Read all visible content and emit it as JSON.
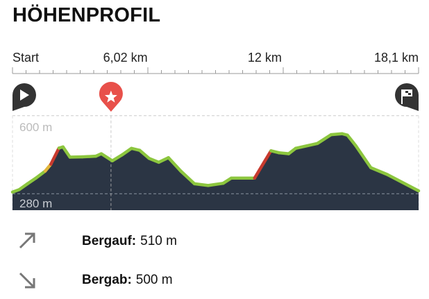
{
  "header": {
    "title": "HÖHENPROFIL"
  },
  "chart_data": {
    "type": "area",
    "title": "",
    "xlabel": "",
    "ylabel": "",
    "x_unit": "km",
    "y_unit": "m",
    "xlim": [
      0,
      18.1
    ],
    "ylim": [
      207,
      600
    ],
    "x_tick_labels": [
      {
        "value": 0,
        "label": "Start"
      },
      {
        "value": 6.02,
        "label": "6,02 km"
      },
      {
        "value": 12,
        "label": "12 km"
      },
      {
        "value": 18.1,
        "label": "18,1 km"
      }
    ],
    "y_tick_labels": [
      {
        "value": 600,
        "label": "600 m"
      },
      {
        "value": 280,
        "label": "280 m"
      }
    ],
    "grid": true,
    "x": [
      0,
      0.3,
      0.67,
      1.04,
      1.46,
      1.71,
      2.07,
      2.25,
      2.56,
      3.11,
      3.72,
      3.96,
      4.45,
      4.88,
      5.3,
      5.67,
      6.09,
      6.52,
      6.95,
      7.5,
      8.11,
      8.72,
      9.39,
      9.75,
      10.79,
      11.52,
      11.88,
      12.31,
      12.62,
      13.59,
      14.2,
      14.69,
      14.93,
      15.3,
      15.97,
      16.7,
      18.1
    ],
    "y": [
      287,
      297,
      321,
      344,
      373,
      401,
      467,
      472,
      430,
      431,
      434,
      444,
      415,
      439,
      466,
      458,
      425,
      409,
      428,
      373,
      321,
      314,
      323,
      344,
      344,
      456,
      448,
      444,
      466,
      486,
      522,
      526,
      520,
      477,
      387,
      359,
      292
    ],
    "markers": [
      {
        "type": "start",
        "icon": "play-icon",
        "km": 0
      },
      {
        "type": "highlight",
        "icon": "star-icon",
        "km": 4.39
      },
      {
        "type": "finish",
        "icon": "checkered-flag-icon",
        "km": 18.1
      }
    ],
    "colors": {
      "fill": "#2b3544",
      "line_flat": "#8cc63e",
      "line_moderate": "#e0b43a",
      "line_steep": "#c83a2e",
      "marker_highlight": "#e8504a",
      "marker_dark": "#333333"
    }
  },
  "stats": {
    "ascent": {
      "label": "Bergauf:",
      "value": "510 m",
      "icon": "arrow-up-right-icon"
    },
    "descent": {
      "label": "Bergab:",
      "value": "500 m",
      "icon": "arrow-down-right-icon"
    }
  }
}
